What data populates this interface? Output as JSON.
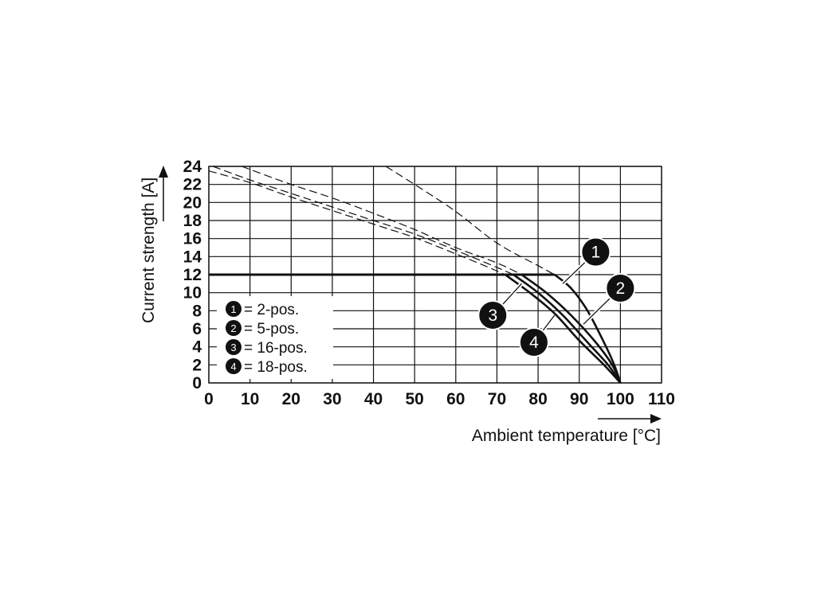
{
  "chart_data": {
    "type": "line",
    "xlabel": "Ambient temperature [°C]",
    "ylabel": "Current strength [A]",
    "xlim": [
      0,
      110
    ],
    "ylim": [
      0,
      24
    ],
    "x_ticks": [
      0,
      10,
      20,
      30,
      40,
      50,
      60,
      70,
      80,
      90,
      100,
      110
    ],
    "y_ticks": [
      0,
      2,
      4,
      6,
      8,
      10,
      12,
      14,
      16,
      18,
      20,
      22,
      24
    ],
    "grid": true,
    "legend_position": "bottom-left",
    "limit_line": {
      "y": 12,
      "x_range": [
        0,
        84
      ]
    },
    "series": [
      {
        "id": "1",
        "name": "2-pos.",
        "solid": [
          [
            84,
            12
          ],
          [
            88,
            10.5
          ],
          [
            92,
            8
          ],
          [
            96,
            4.5
          ],
          [
            98.5,
            2
          ],
          [
            100,
            0
          ]
        ],
        "dashed": [
          [
            43,
            24
          ],
          [
            50,
            22
          ],
          [
            60,
            19
          ],
          [
            70,
            15.5
          ],
          [
            80,
            13
          ],
          [
            84,
            12
          ]
        ]
      },
      {
        "id": "2",
        "name": "5-pos.",
        "solid": [
          [
            76,
            12
          ],
          [
            82,
            10
          ],
          [
            88,
            7.5
          ],
          [
            94,
            4.5
          ],
          [
            98,
            2
          ],
          [
            100,
            0
          ]
        ],
        "dashed": [
          [
            8,
            24
          ],
          [
            20,
            22
          ],
          [
            30,
            20.5
          ],
          [
            40,
            18.8
          ],
          [
            50,
            17
          ],
          [
            60,
            15
          ],
          [
            70,
            13.3
          ],
          [
            76,
            12
          ]
        ]
      },
      {
        "id": "3",
        "name": "16-pos.",
        "solid": [
          [
            74,
            12
          ],
          [
            80,
            10
          ],
          [
            86,
            7.5
          ],
          [
            92,
            4.5
          ],
          [
            97,
            2
          ],
          [
            100,
            0
          ]
        ],
        "dashed": [
          [
            1,
            24
          ],
          [
            10,
            22.5
          ],
          [
            20,
            21
          ],
          [
            30,
            19.5
          ],
          [
            40,
            18
          ],
          [
            50,
            16.5
          ],
          [
            60,
            14.7
          ],
          [
            70,
            12.8
          ],
          [
            74,
            12
          ]
        ]
      },
      {
        "id": "4",
        "name": "18-pos.",
        "solid": [
          [
            72,
            12
          ],
          [
            78,
            10
          ],
          [
            84,
            7.7
          ],
          [
            90,
            4.7
          ],
          [
            96,
            2
          ],
          [
            100,
            0
          ]
        ],
        "dashed": [
          [
            0,
            23.5
          ],
          [
            10,
            22.2
          ],
          [
            20,
            20.6
          ],
          [
            30,
            19.1
          ],
          [
            40,
            17.6
          ],
          [
            50,
            16.1
          ],
          [
            60,
            14.3
          ],
          [
            68,
            12.8
          ],
          [
            72,
            12
          ]
        ]
      }
    ],
    "legend": [
      {
        "id": "1",
        "text": "= 2-pos."
      },
      {
        "id": "2",
        "text": "= 5-pos."
      },
      {
        "id": "3",
        "text": "= 16-pos."
      },
      {
        "id": "4",
        "text": "= 18-pos."
      }
    ],
    "callouts": [
      {
        "id": "1",
        "point": [
          86,
          11
        ],
        "badge": [
          94,
          14.5
        ]
      },
      {
        "id": "2",
        "point": [
          91,
          6.5
        ],
        "badge": [
          100,
          10.5
        ]
      },
      {
        "id": "3",
        "point": [
          76,
          11
        ],
        "badge": [
          69,
          7.5
        ]
      },
      {
        "id": "4",
        "point": [
          84,
          7.5
        ],
        "badge": [
          79,
          4.5
        ]
      }
    ]
  }
}
